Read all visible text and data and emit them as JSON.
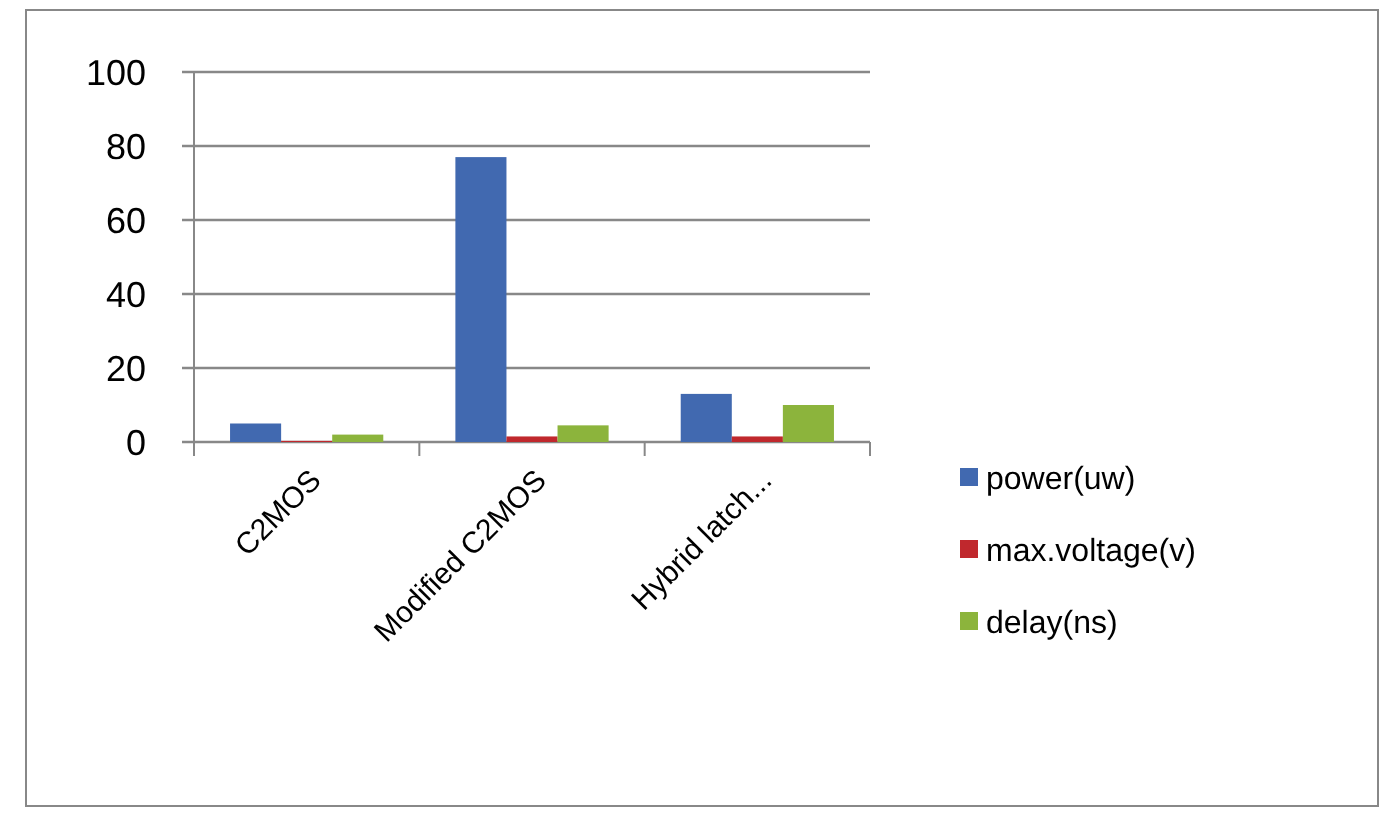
{
  "chart_data": {
    "type": "bar",
    "categories": [
      "C2MOS",
      "Modified C2MOS",
      "Hybrid latch..."
    ],
    "series": [
      {
        "name": "power(uw)",
        "color": "#4169b0",
        "values": [
          5,
          77,
          13
        ]
      },
      {
        "name": "max.voltage(v)",
        "color": "#c0282d",
        "values": [
          0.3,
          1.5,
          1.5
        ]
      },
      {
        "name": "delay(ns)",
        "color": "#8cb43c",
        "values": [
          2,
          4.5,
          10
        ]
      }
    ],
    "ylim": [
      0,
      100
    ],
    "yticks": [
      0,
      20,
      40,
      60,
      80,
      100
    ],
    "grid": "y",
    "legend": "right"
  }
}
